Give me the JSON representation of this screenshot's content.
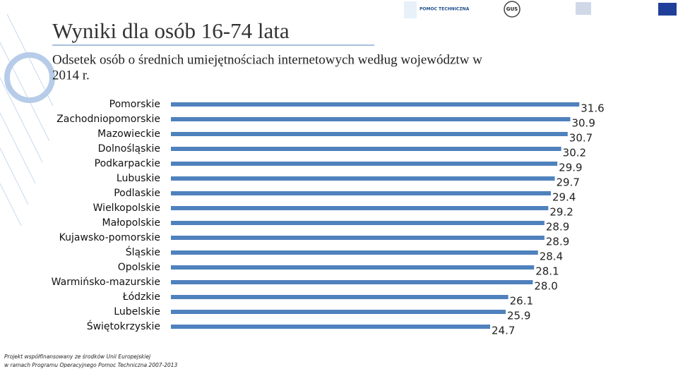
{
  "chart_data": {
    "type": "bar",
    "orientation": "horizontal",
    "title": "Wyniki dla osób 16-74 lata",
    "subtitle": [
      "Odsetek osób o średnich umiejętnościach internetowych według województw w",
      "2014 r."
    ],
    "categories": [
      "Pomorskie",
      "Zachodniopomorskie",
      "Mazowieckie",
      "Dolnośląskie",
      "Podkarpackie",
      "Lubuskie",
      "Podlaskie",
      "Wielkopolskie",
      "Małopolskie",
      "Kujawsko-pomorskie",
      "Śląskie",
      "Opolskie",
      "Warmińsko-mazurskie",
      "Łódzkie",
      "Lubelskie",
      "Świętokrzyskie"
    ],
    "values": [
      31.6,
      30.9,
      30.7,
      30.2,
      29.9,
      29.7,
      29.4,
      29.2,
      28.9,
      28.9,
      28.4,
      28.1,
      28.0,
      26.1,
      25.9,
      24.7
    ],
    "value_labels": [
      "31.6",
      "30.9",
      "30.7",
      "30.2",
      "29.9",
      "29.7",
      "29.4",
      "29.2",
      "28.9",
      "28.9",
      "28.4",
      "28.1",
      "28.0",
      "26.1",
      "25.9",
      "24.7"
    ],
    "color": "#4f81bd"
  },
  "header": {
    "logos": [
      "POMOC TECHNICZNA",
      "GUS"
    ]
  },
  "footer": [
    "Projekt współfinansowany ze środków Unii Europejskiej",
    "w ramach Programu Operacyjnego Pomoc Techniczna 2007-2013"
  ]
}
